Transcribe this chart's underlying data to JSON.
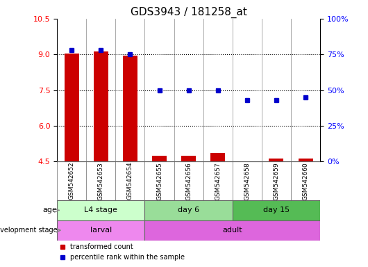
{
  "title": "GDS3943 / 181258_at",
  "samples": [
    "GSM542652",
    "GSM542653",
    "GSM542654",
    "GSM542655",
    "GSM542656",
    "GSM542657",
    "GSM542658",
    "GSM542659",
    "GSM542660"
  ],
  "transformed_count": [
    9.05,
    9.12,
    8.95,
    4.73,
    4.75,
    4.85,
    4.52,
    4.63,
    4.63
  ],
  "percentile_rank": [
    78,
    78,
    75,
    50,
    50,
    50,
    43,
    43,
    45
  ],
  "ylim_left": [
    4.5,
    10.5
  ],
  "ylim_right": [
    0,
    100
  ],
  "yticks_left": [
    4.5,
    6.0,
    7.5,
    9.0,
    10.5
  ],
  "yticks_right": [
    0,
    25,
    50,
    75,
    100
  ],
  "ytick_labels_right": [
    "0%",
    "25%",
    "50%",
    "75%",
    "100%"
  ],
  "bar_color": "#cc0000",
  "dot_color": "#0000cc",
  "bar_width": 0.5,
  "age_groups": [
    {
      "label": "L4 stage",
      "start": 0,
      "end": 2,
      "color": "#ccffcc"
    },
    {
      "label": "day 6",
      "start": 3,
      "end": 5,
      "color": "#99dd99"
    },
    {
      "label": "day 15",
      "start": 6,
      "end": 8,
      "color": "#55bb55"
    }
  ],
  "dev_groups": [
    {
      "label": "larval",
      "start": 0,
      "end": 2,
      "color": "#ee88ee"
    },
    {
      "label": "adult",
      "start": 3,
      "end": 8,
      "color": "#dd66dd"
    }
  ],
  "legend_bar_label": "transformed count",
  "legend_dot_label": "percentile rank within the sample",
  "age_row_label": "age",
  "dev_row_label": "development stage",
  "title_fontsize": 11,
  "tick_fontsize": 8,
  "label_fontsize": 8,
  "xtick_bg_color": "#d8d8d8",
  "xtick_sep_color": "#888888",
  "grid_dotted_color": "#000000",
  "background_color": "#ffffff"
}
